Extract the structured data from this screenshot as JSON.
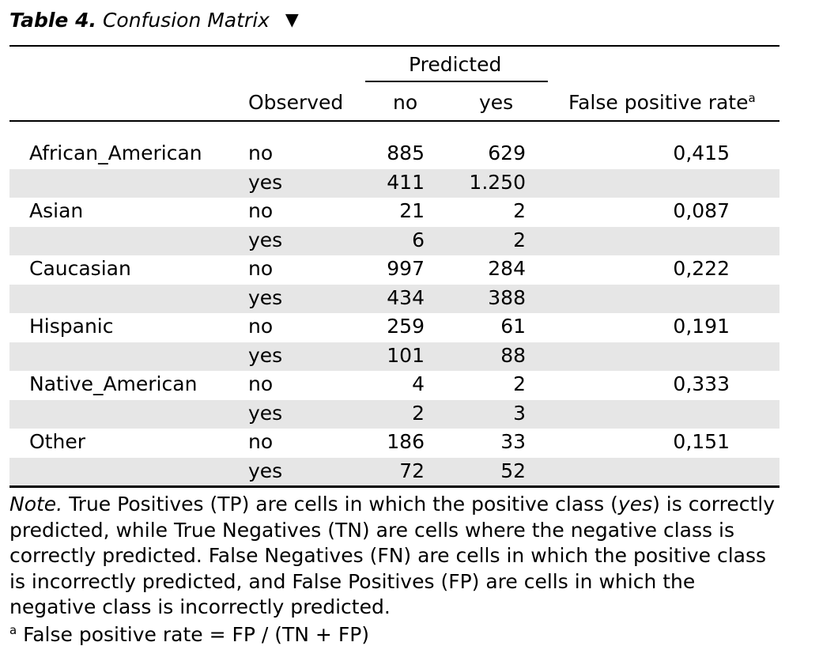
{
  "caption": {
    "table_number": "Table 4.",
    "title": "Confusion Matrix",
    "toggle_glyph": "▼"
  },
  "header": {
    "predicted": "Predicted",
    "observed": "Observed",
    "no": "no",
    "yes": "yes",
    "fpr": "False positive rate",
    "fpr_sup": "a"
  },
  "groups": [
    {
      "name": "African_American",
      "fpr": "0,415",
      "rows": [
        {
          "observed": "no",
          "pred_no": "885",
          "pred_yes": "629"
        },
        {
          "observed": "yes",
          "pred_no": "411",
          "pred_yes": "1.250"
        }
      ]
    },
    {
      "name": "Asian",
      "fpr": "0,087",
      "rows": [
        {
          "observed": "no",
          "pred_no": "21",
          "pred_yes": "2"
        },
        {
          "observed": "yes",
          "pred_no": "6",
          "pred_yes": "2"
        }
      ]
    },
    {
      "name": "Caucasian",
      "fpr": "0,222",
      "rows": [
        {
          "observed": "no",
          "pred_no": "997",
          "pred_yes": "284"
        },
        {
          "observed": "yes",
          "pred_no": "434",
          "pred_yes": "388"
        }
      ]
    },
    {
      "name": "Hispanic",
      "fpr": "0,191",
      "rows": [
        {
          "observed": "no",
          "pred_no": "259",
          "pred_yes": "61"
        },
        {
          "observed": "yes",
          "pred_no": "101",
          "pred_yes": "88"
        }
      ]
    },
    {
      "name": "Native_American",
      "fpr": "0,333",
      "rows": [
        {
          "observed": "no",
          "pred_no": "4",
          "pred_yes": "2"
        },
        {
          "observed": "yes",
          "pred_no": "2",
          "pred_yes": "3"
        }
      ]
    },
    {
      "name": "Other",
      "fpr": "0,151",
      "rows": [
        {
          "observed": "no",
          "pred_no": "186",
          "pred_yes": "33"
        },
        {
          "observed": "yes",
          "pred_no": "72",
          "pred_yes": "52"
        }
      ]
    }
  ],
  "note": {
    "label": "Note.",
    "text_1": " True Positives (TP) are cells in which the positive class (",
    "text_em": "yes",
    "text_2": ") is correctly predicted, while True Negatives (TN) are cells where the negative class is correctly predicted. False Negatives (FN) are cells in which the positive class is incorrectly predicted, and False Positives (FP) are cells in which the negative class is incorrectly predicted."
  },
  "footnote": {
    "sup": "a",
    "text": " False positive rate = FP / (TN + FP)"
  }
}
